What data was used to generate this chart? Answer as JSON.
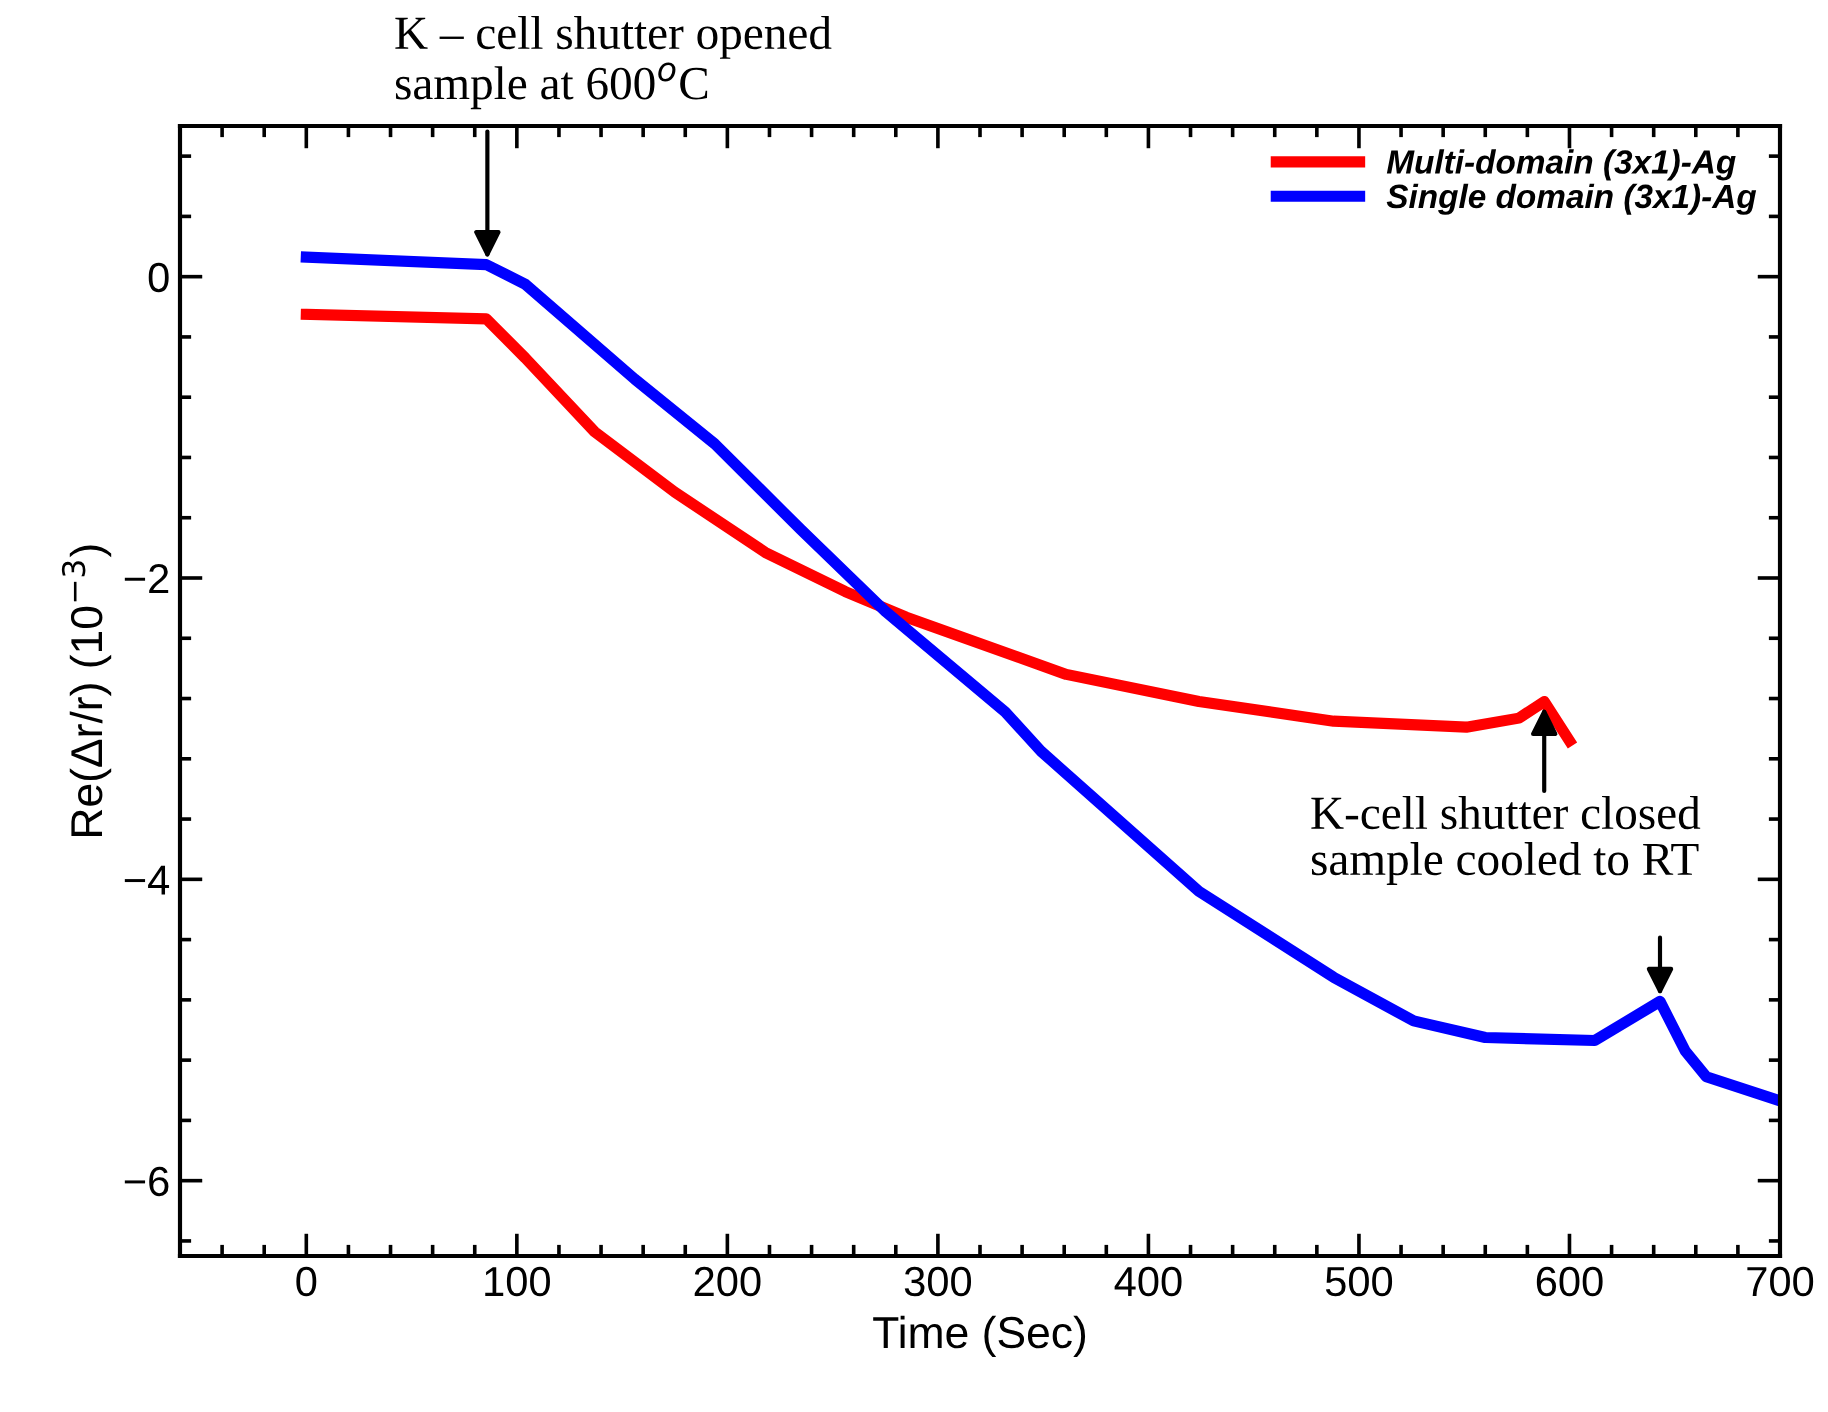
{
  "chart_data": {
    "type": "line",
    "xlabel": "Time (Sec)",
    "ylabel": "Re(Δr/r) (10$^{−3}$)",
    "xlim": [
      -60,
      700
    ],
    "xticks": [
      0,
      100,
      200,
      300,
      400,
      500,
      600,
      700
    ],
    "ylim": [
      -6.5,
      1.0
    ],
    "yticks": [
      0,
      -2,
      -4,
      -6
    ],
    "legend": "top right",
    "grid": false,
    "marker": "none",
    "line_style": "solid",
    "series": [
      {
        "name": "Multi-domain (3x1)-Ag",
        "color": "#ff0000",
        "x": [
          0,
          85.5,
          104,
          137,
          175,
          218,
          256,
          285,
          361,
          424,
          488,
          551,
          576,
          588,
          600
        ],
        "values": [
          -0.25,
          -0.28,
          -0.54,
          -1.03,
          -1.43,
          -1.83,
          -2.09,
          -2.26,
          -2.64,
          -2.82,
          -2.95,
          -2.99,
          -2.93,
          -2.82,
          -3.08
        ]
      },
      {
        "name": "Single domain (3x1)-Ag",
        "color": "#0000ff",
        "x": [
          0,
          85.5,
          104,
          156,
          194,
          235,
          275,
          332,
          349,
          424,
          488,
          526,
          560,
          612,
          643,
          655,
          665,
          700
        ],
        "values": [
          0.13,
          0.08,
          -0.05,
          -0.68,
          -1.11,
          -1.68,
          -2.22,
          -2.89,
          -3.15,
          -4.08,
          -4.65,
          -4.94,
          -5.05,
          -5.07,
          -4.81,
          -5.14,
          -5.31,
          -5.47
        ]
      }
    ],
    "annotations": [
      {
        "text": "K – cell shutter opened\nsample at 600$^{o}$C",
        "x": 86,
        "y": 0.08
      },
      {
        "text": "K-cell shutter closed\nsample cooled to RT",
        "x": 643,
        "y": -4.81
      }
    ]
  }
}
